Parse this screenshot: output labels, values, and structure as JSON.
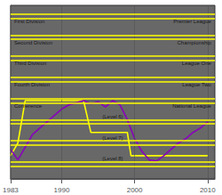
{
  "chart_data": {
    "type": "line",
    "xlim": [
      1983,
      2011
    ],
    "xticks": [
      1983,
      1990,
      2000,
      2010
    ],
    "ylim": [
      8.7,
      0.5
    ],
    "yticks": [],
    "grid": true,
    "tick_labels": "x",
    "series": [
      {
        "type": "line",
        "color": "#ffff00",
        "x": [
          1983,
          1984,
          1985,
          1993,
          1994,
          1999,
          1999.5,
          2000,
          2010
        ],
        "values": [
          7.6,
          7.0,
          5.0,
          5.0,
          6.5,
          6.5,
          7.6,
          7.6,
          7.6
        ]
      },
      {
        "type": "line",
        "color": "#8800bb",
        "x": [
          1983,
          1984,
          1985,
          1986,
          1987,
          1988,
          1989,
          1990,
          1991,
          1992,
          1993,
          1994,
          1995,
          1996,
          1997,
          1998,
          1999,
          2000,
          2001,
          2002,
          2003,
          2004,
          2005,
          2006,
          2007,
          2008,
          2009,
          2010
        ],
        "values": [
          7.3,
          7.8,
          7.2,
          6.6,
          6.3,
          6.0,
          5.7,
          5.4,
          5.2,
          5.1,
          5.0,
          5.15,
          5.05,
          5.3,
          5.0,
          5.2,
          5.9,
          6.8,
          7.4,
          7.8,
          7.85,
          7.6,
          7.3,
          7.0,
          6.8,
          6.5,
          6.3,
          6.0
        ]
      }
    ],
    "hlines": {
      "color": "#ffff00",
      "values": [
        0.9,
        1.1,
        1.9,
        2.1,
        2.9,
        3.1,
        3.9,
        4.1,
        4.9,
        5.1,
        5.9,
        6.1,
        6.9,
        7.1,
        7.9,
        8.1
      ]
    },
    "annotations": [
      {
        "text": "First Division",
        "x": 1983.5,
        "y": 1.25,
        "align": "left"
      },
      {
        "text": "Second Division",
        "x": 1983.5,
        "y": 2.25,
        "align": "left"
      },
      {
        "text": "Third Division",
        "x": 1983.5,
        "y": 3.25,
        "align": "left"
      },
      {
        "text": "Fourth Division",
        "x": 1983.5,
        "y": 4.25,
        "align": "left"
      },
      {
        "text": "Conference",
        "x": 1983.5,
        "y": 5.25,
        "align": "left"
      },
      {
        "text": "Premier League",
        "x": 2010.5,
        "y": 1.25,
        "align": "right"
      },
      {
        "text": "Championship",
        "x": 2010.5,
        "y": 2.25,
        "align": "right"
      },
      {
        "text": "League One",
        "x": 2010.5,
        "y": 3.25,
        "align": "right"
      },
      {
        "text": "League Two",
        "x": 2010.5,
        "y": 4.25,
        "align": "right"
      },
      {
        "text": "National League",
        "x": 2010.5,
        "y": 5.25,
        "align": "right"
      },
      {
        "text": "(Level 6)",
        "x": 1997,
        "y": 5.75,
        "align": "center"
      },
      {
        "text": "(Level 7)",
        "x": 1997,
        "y": 6.75,
        "align": "center"
      },
      {
        "text": "(Level 8)",
        "x": 1997,
        "y": 7.75,
        "align": "center"
      }
    ]
  }
}
